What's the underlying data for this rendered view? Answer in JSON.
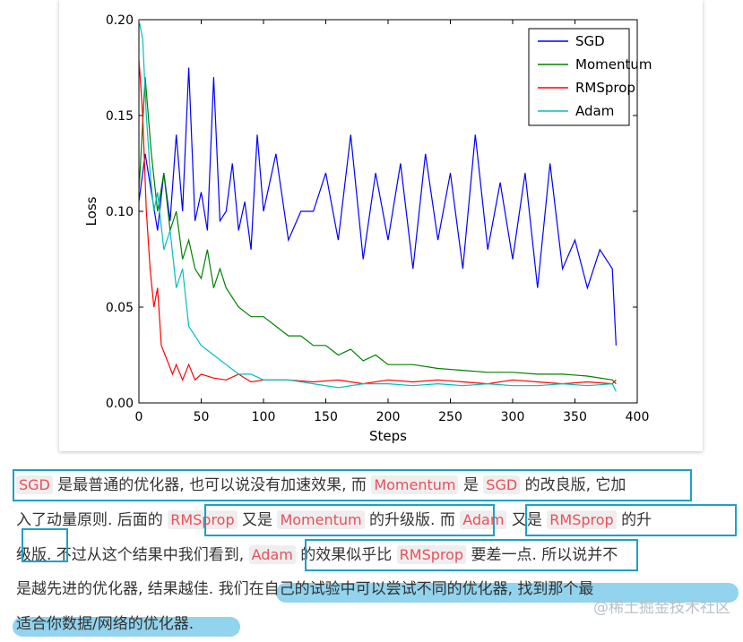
{
  "chart_data": {
    "type": "line",
    "xlabel": "Steps",
    "ylabel": "Loss",
    "xlim": [
      0,
      400
    ],
    "ylim": [
      0,
      0.2
    ],
    "xticks": [
      "0",
      "50",
      "100",
      "150",
      "200",
      "250",
      "300",
      "350",
      "400"
    ],
    "yticks": [
      "0.00",
      "0.05",
      "0.10",
      "0.15",
      "0.20"
    ],
    "grid": false,
    "legend_position": "top-right",
    "series": [
      {
        "name": "SGD",
        "color": "#0000ff",
        "x": [
          0,
          5,
          10,
          15,
          20,
          25,
          30,
          35,
          40,
          45,
          50,
          55,
          60,
          65,
          70,
          75,
          80,
          85,
          90,
          95,
          100,
          110,
          120,
          130,
          140,
          150,
          160,
          170,
          180,
          190,
          200,
          210,
          220,
          230,
          240,
          250,
          260,
          270,
          280,
          290,
          300,
          310,
          320,
          330,
          340,
          350,
          360,
          370,
          380,
          383
        ],
        "y": [
          0.105,
          0.13,
          0.11,
          0.09,
          0.12,
          0.095,
          0.14,
          0.1,
          0.175,
          0.095,
          0.11,
          0.09,
          0.17,
          0.095,
          0.1,
          0.125,
          0.09,
          0.105,
          0.08,
          0.14,
          0.1,
          0.13,
          0.085,
          0.1,
          0.1,
          0.12,
          0.085,
          0.14,
          0.075,
          0.12,
          0.085,
          0.125,
          0.07,
          0.13,
          0.085,
          0.12,
          0.07,
          0.14,
          0.08,
          0.115,
          0.075,
          0.12,
          0.06,
          0.125,
          0.07,
          0.085,
          0.06,
          0.08,
          0.07,
          0.03
        ]
      },
      {
        "name": "Momentum",
        "color": "#008000",
        "x": [
          0,
          5,
          10,
          15,
          20,
          25,
          30,
          35,
          40,
          45,
          50,
          55,
          60,
          65,
          70,
          80,
          90,
          100,
          110,
          120,
          130,
          140,
          150,
          160,
          170,
          180,
          190,
          200,
          220,
          240,
          260,
          280,
          300,
          320,
          340,
          360,
          380,
          383
        ],
        "y": [
          0.11,
          0.17,
          0.13,
          0.1,
          0.12,
          0.09,
          0.1,
          0.075,
          0.085,
          0.07,
          0.065,
          0.08,
          0.06,
          0.07,
          0.06,
          0.05,
          0.045,
          0.045,
          0.04,
          0.035,
          0.035,
          0.03,
          0.03,
          0.025,
          0.028,
          0.022,
          0.025,
          0.02,
          0.02,
          0.018,
          0.017,
          0.016,
          0.016,
          0.015,
          0.015,
          0.014,
          0.012,
          0.01
        ]
      },
      {
        "name": "RMSprop",
        "color": "#ff0000",
        "x": [
          0,
          3,
          6,
          9,
          12,
          15,
          18,
          21,
          24,
          27,
          30,
          35,
          40,
          45,
          50,
          60,
          70,
          80,
          90,
          100,
          120,
          140,
          160,
          180,
          200,
          220,
          240,
          260,
          280,
          300,
          320,
          340,
          360,
          380,
          383
        ],
        "y": [
          0.18,
          0.15,
          0.1,
          0.07,
          0.05,
          0.06,
          0.03,
          0.025,
          0.02,
          0.015,
          0.02,
          0.012,
          0.02,
          0.012,
          0.015,
          0.013,
          0.012,
          0.015,
          0.011,
          0.012,
          0.012,
          0.011,
          0.012,
          0.01,
          0.012,
          0.011,
          0.012,
          0.011,
          0.01,
          0.012,
          0.011,
          0.01,
          0.011,
          0.01,
          0.012
        ]
      },
      {
        "name": "Adam",
        "color": "#00bfbf",
        "x": [
          0,
          3,
          6,
          9,
          12,
          15,
          20,
          25,
          30,
          35,
          40,
          45,
          50,
          60,
          70,
          80,
          90,
          100,
          120,
          140,
          160,
          180,
          200,
          220,
          240,
          260,
          280,
          300,
          320,
          340,
          360,
          380,
          383
        ],
        "y": [
          0.2,
          0.19,
          0.15,
          0.12,
          0.1,
          0.11,
          0.08,
          0.09,
          0.06,
          0.07,
          0.04,
          0.035,
          0.03,
          0.025,
          0.02,
          0.015,
          0.015,
          0.012,
          0.012,
          0.01,
          0.008,
          0.01,
          0.01,
          0.009,
          0.01,
          0.009,
          0.01,
          0.009,
          0.009,
          0.01,
          0.009,
          0.01,
          0.006
        ]
      }
    ]
  },
  "article": {
    "line1": {
      "c1": "SGD",
      "t1": " 是最普通的优化器, 也可以说没有加速效果, 而 ",
      "c2": "Momentum",
      "t2": " 是 ",
      "c3": "SGD",
      "t3": " 的改良版, 它加"
    },
    "line2": {
      "t1": "入了动量原则. 后面的 ",
      "c1": "RMSprop",
      "t2": " 又是 ",
      "c2": "Momentum",
      "t3": " 的升级版. 而 ",
      "c3": "Adam",
      "t4": " 又是 ",
      "c4": "RMSprop",
      "t5": " 的升"
    },
    "line3": {
      "t1": "级版. 不过从这个结果中我们看到, ",
      "c1": "Adam",
      "t2": " 的效果似乎比 ",
      "c2": "RMSprop",
      "t3": " 要差一点. 所以说并不"
    },
    "line4": {
      "t1": "是越先进的优化器, 结果越佳. 我们在自己的试验中可以尝试不同的优化器, 找到那个最"
    },
    "line5": {
      "t1": "适合你数据/网络的优化器."
    }
  },
  "watermark": "@稀土掘金技术社区",
  "colors": {
    "highlight_box": "#1ba1c8",
    "marker": "#7fcbea",
    "code_text": "#e8505b"
  }
}
